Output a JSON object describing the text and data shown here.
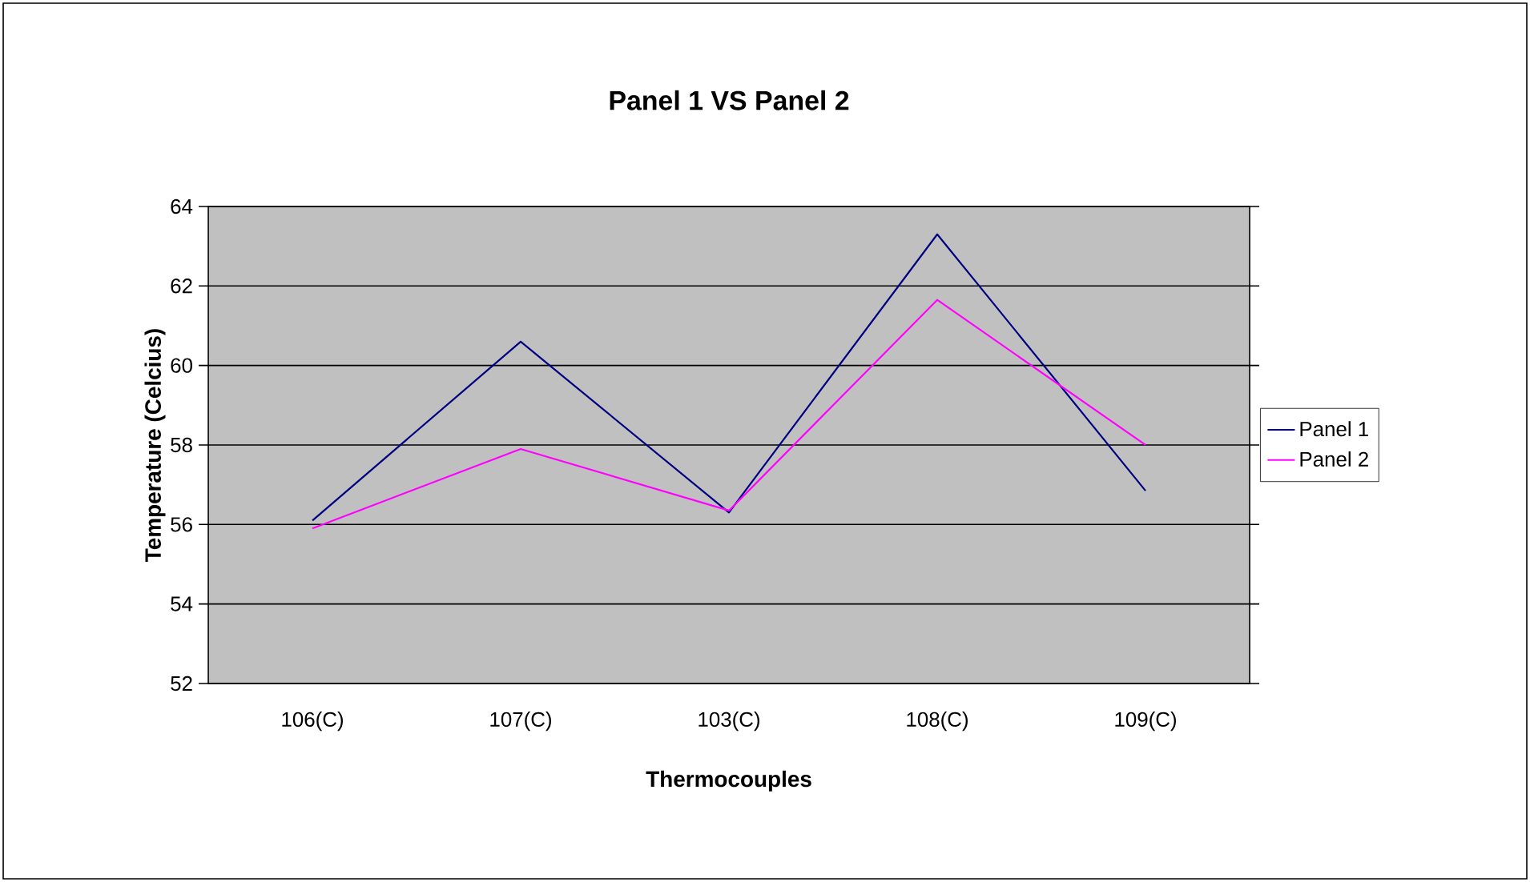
{
  "chart_data": {
    "type": "line",
    "title": "Panel 1 VS Panel 2",
    "xlabel": "Thermocouples",
    "ylabel": "Temperature (Celcius)",
    "categories": [
      "106(C)",
      "107(C)",
      "103(C)",
      "108(C)",
      "109(C)"
    ],
    "series": [
      {
        "name": "Panel 1",
        "color": "#000080",
        "values": [
          56.1,
          60.6,
          56.3,
          63.3,
          56.85
        ]
      },
      {
        "name": "Panel 2",
        "color": "#ff00ff",
        "values": [
          55.9,
          57.9,
          56.35,
          61.65,
          58.0
        ]
      }
    ],
    "ylim": [
      52,
      64
    ],
    "yticks": [
      52,
      54,
      56,
      58,
      60,
      62,
      64
    ],
    "grid": "y",
    "legend": "right",
    "marker": "none",
    "line_style": "solid"
  }
}
